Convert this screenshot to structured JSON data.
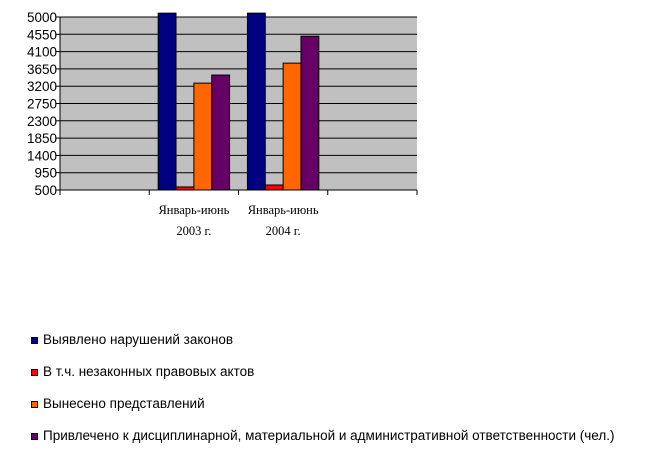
{
  "chart_data": {
    "type": "bar",
    "title": "",
    "xlabel": "",
    "ylabel": "",
    "ylim": [
      500,
      5000
    ],
    "yticks": [
      "500",
      "950",
      "1400",
      "1850",
      "2300",
      "2750",
      "3200",
      "3650",
      "4100",
      "4550",
      "5000"
    ],
    "grid": true,
    "plot_background": "#C0C0C0",
    "legend_position": "bottom",
    "categories": [
      "",
      "Январь-июнь|2003 г.",
      "Январь-июнь|2004 г.",
      ""
    ],
    "series": [
      {
        "name": "Выявлено нарушений законов",
        "color": "#000080",
        "values": [
          null,
          5100,
          5100,
          null
        ]
      },
      {
        "name": "В т.ч. незаконных правовых актов",
        "color": "#FF0000",
        "values": [
          null,
          580,
          630,
          null
        ]
      },
      {
        "name": "Вынесено представлений",
        "color": "#FF6600",
        "values": [
          null,
          3280,
          3800,
          null
        ]
      },
      {
        "name": "Привлечено к дисциплинарной, материальной и административной ответственности (чел.)",
        "color": "#660066",
        "values": [
          null,
          3490,
          4500,
          null
        ]
      }
    ]
  }
}
